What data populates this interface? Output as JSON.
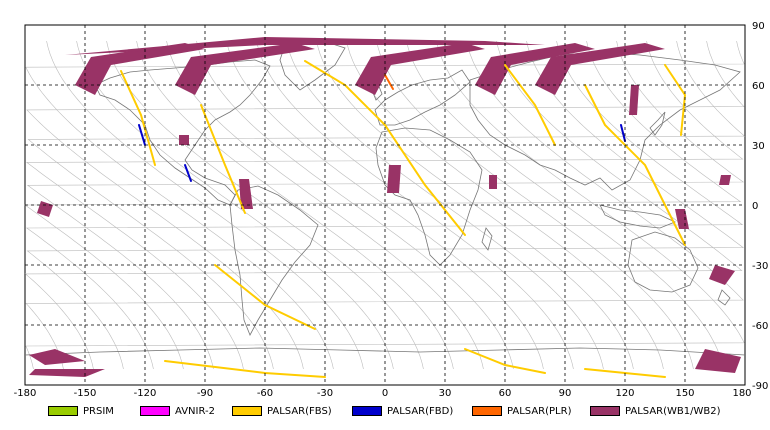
{
  "map": {
    "x_ticks": [
      "-180",
      "-150",
      "-120",
      "-90",
      "-60",
      "-30",
      "0",
      "30",
      "60",
      "90",
      "120",
      "150",
      "180"
    ],
    "y_ticks": [
      "90",
      "60",
      "30",
      "0",
      "-30",
      "-60",
      "-90"
    ],
    "x_range": [
      -180,
      180
    ],
    "y_range": [
      -90,
      90
    ],
    "grid": "dashed",
    "grid_step_degrees": 30
  },
  "legend": {
    "items": [
      {
        "label": "PRSIM",
        "color": "#99cc00"
      },
      {
        "label": "AVNIR-2",
        "color": "#ff00ff"
      },
      {
        "label": "PALSAR(FBS)",
        "color": "#ffcc00"
      },
      {
        "label": "PALSAR(FBD)",
        "color": "#0000cc"
      },
      {
        "label": "PALSAR(PLR)",
        "color": "#ff6600"
      },
      {
        "label": "PALSAR(WB1/WB2)",
        "color": "#993366"
      }
    ]
  },
  "colors": {
    "fbs": "#ffcc00",
    "fbd": "#0000cc",
    "plr": "#ff6600",
    "wb": "#993366",
    "orbit": "#bbbbbb",
    "coast": "#666666"
  }
}
